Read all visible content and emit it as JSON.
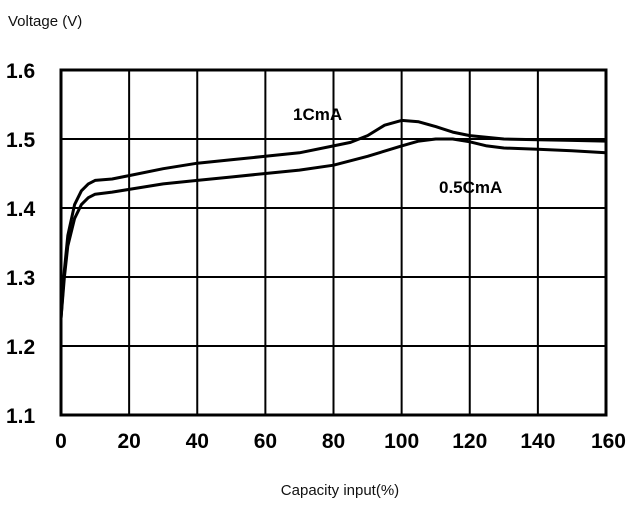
{
  "chart_data": {
    "type": "line",
    "xlabel": "Capacity input(%)",
    "ylabel": "Voltage (V)",
    "xlim": [
      0,
      160
    ],
    "ylim": [
      1.1,
      1.6
    ],
    "xticks": [
      0,
      20,
      40,
      60,
      80,
      100,
      120,
      140,
      160
    ],
    "yticks": [
      1.1,
      1.2,
      1.3,
      1.4,
      1.5,
      1.6
    ],
    "ytick_labels": [
      "1.1",
      "1.2",
      "1.3",
      "1.4",
      "1.5",
      "1.6"
    ],
    "grid": true,
    "series": [
      {
        "name": "1CmA",
        "x": [
          0,
          1,
          2,
          4,
          6,
          8,
          10,
          15,
          20,
          30,
          40,
          50,
          60,
          70,
          80,
          85,
          90,
          95,
          100,
          105,
          110,
          115,
          120,
          130,
          140,
          150,
          160
        ],
        "y": [
          1.24,
          1.31,
          1.36,
          1.405,
          1.425,
          1.435,
          1.44,
          1.442,
          1.447,
          1.457,
          1.465,
          1.47,
          1.475,
          1.48,
          1.49,
          1.495,
          1.505,
          1.52,
          1.527,
          1.525,
          1.518,
          1.51,
          1.505,
          1.5,
          1.499,
          1.498,
          1.497
        ]
      },
      {
        "name": "0.5CmA",
        "x": [
          0,
          1,
          2,
          4,
          6,
          8,
          10,
          15,
          20,
          30,
          40,
          50,
          60,
          70,
          80,
          90,
          100,
          105,
          110,
          115,
          120,
          125,
          130,
          140,
          150,
          160
        ],
        "y": [
          1.24,
          1.3,
          1.345,
          1.385,
          1.405,
          1.415,
          1.42,
          1.423,
          1.427,
          1.435,
          1.44,
          1.445,
          1.45,
          1.455,
          1.462,
          1.475,
          1.49,
          1.497,
          1.5,
          1.5,
          1.496,
          1.49,
          1.487,
          1.485,
          1.483,
          1.48
        ]
      }
    ]
  }
}
